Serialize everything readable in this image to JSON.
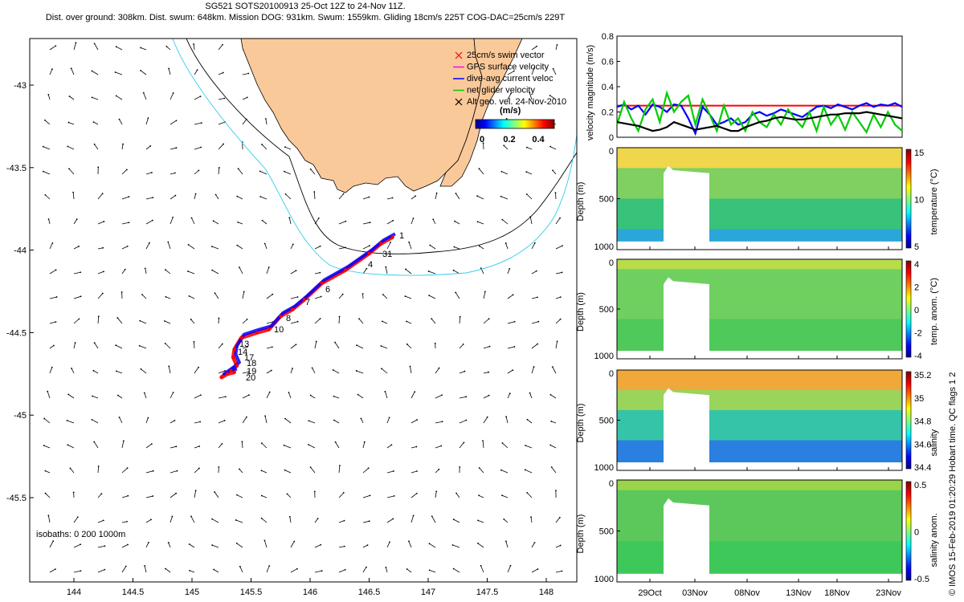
{
  "header": {
    "title_line1": "SG521 SOTS20100913 25-Oct 12Z to 24-Nov 11Z.",
    "title_line2": "Dist. over ground: 308km. Dist. swum: 648km. Mission DOG: 931km. Swum: 1559km. Gliding 18cm/s 225T COG-DAC=25cm/s 229T"
  },
  "credit": "© IMOS 15-Feb-2019 01:20:29 Hobart time. QC flags 1  2",
  "colors": {
    "land": "#fac99a",
    "track": "#ff0000",
    "surface": "#0000ff",
    "dac": "#00cc00",
    "isobath_cyan": "#33ccee"
  },
  "chart_data": [
    {
      "type": "map",
      "name": "track map",
      "xticks": [
        144,
        144.5,
        145,
        145.5,
        146,
        146.5,
        147,
        147.5,
        148
      ],
      "yticks": [
        -43,
        -43.5,
        -44,
        -44.5,
        -45,
        -45.5
      ],
      "xlim": [
        143.7,
        148.25
      ],
      "ylim": [
        -46.0,
        -42.7
      ],
      "legend": [
        "25cm/s swim vector",
        "GPS surface velocity",
        "dive-avg current veloc",
        "net glider velocity",
        "Alt geo. vel. 24-Nov-2010"
      ],
      "colorbar": {
        "label": "(m/s)",
        "ticks": [
          "0",
          "0.2",
          "0.4"
        ]
      },
      "isobaths_note": "isobaths: 0   200   1000m",
      "dive_labels": [
        "1",
        "31",
        "4",
        "6",
        "7",
        "8",
        "10",
        "13",
        "14",
        "17",
        "18",
        "19",
        "20"
      ],
      "track": [
        [
          146.7,
          -43.92
        ],
        [
          146.6,
          -43.96
        ],
        [
          146.5,
          -44.02
        ],
        [
          146.3,
          -44.12
        ],
        [
          146.1,
          -44.2
        ],
        [
          145.95,
          -44.3
        ],
        [
          145.85,
          -44.36
        ],
        [
          145.75,
          -44.4
        ],
        [
          145.65,
          -44.48
        ],
        [
          145.55,
          -44.5
        ],
        [
          145.42,
          -44.53
        ],
        [
          145.36,
          -44.6
        ],
        [
          145.35,
          -44.65
        ],
        [
          145.38,
          -44.7
        ],
        [
          145.33,
          -44.73
        ],
        [
          145.25,
          -44.77
        ],
        [
          145.3,
          -44.75
        ],
        [
          145.36,
          -44.74
        ]
      ]
    },
    {
      "type": "line",
      "name": "velocity",
      "ylabel": "velocity magnitude (m/s)",
      "ylim": [
        0,
        0.8
      ],
      "yticks": [
        "0",
        "0.2",
        "0.4",
        "0.6",
        "0.8"
      ],
      "series": [
        {
          "name": "swim",
          "color": "#ff0000",
          "values": [
            0.25,
            0.25,
            0.25,
            0.25,
            0.25,
            0.25,
            0.25,
            0.25,
            0.25,
            0.25,
            0.25,
            0.25,
            0.25,
            0.25,
            0.25,
            0.25,
            0.25,
            0.25,
            0.25,
            0.25,
            0.25,
            0.25,
            0.25,
            0.25,
            0.25,
            0.25,
            0.25,
            0.25,
            0.25,
            0.25,
            0.25,
            0.25,
            0.25,
            0.25,
            0.25,
            0.25,
            0.25,
            0.25,
            0.25,
            0.25,
            0.25
          ]
        },
        {
          "name": "dive-avg",
          "color": "#0000ff",
          "values": [
            0.24,
            0.26,
            0.22,
            0.25,
            0.18,
            0.26,
            0.24,
            0.2,
            0.26,
            0.25,
            0.15,
            0.03,
            0.24,
            0.18,
            0.1,
            0.12,
            0.15,
            0.1,
            0.12,
            0.18,
            0.2,
            0.17,
            0.19,
            0.22,
            0.2,
            0.18,
            0.16,
            0.2,
            0.24,
            0.25,
            0.23,
            0.26,
            0.24,
            0.22,
            0.25,
            0.27,
            0.24,
            0.26,
            0.25,
            0.27,
            0.24
          ]
        },
        {
          "name": "net",
          "color": "#00cc00",
          "values": [
            0.1,
            0.28,
            0.15,
            0.05,
            0.22,
            0.3,
            0.12,
            0.35,
            0.2,
            0.28,
            0.33,
            0.1,
            0.3,
            0.18,
            0.05,
            0.25,
            0.1,
            0.15,
            0.05,
            0.2,
            0.12,
            0.08,
            0.18,
            0.1,
            0.22,
            0.14,
            0.08,
            0.2,
            0.05,
            0.24,
            0.1,
            0.18,
            0.06,
            0.2,
            0.12,
            0.04,
            0.18,
            0.08,
            0.2,
            0.1,
            0.05
          ]
        },
        {
          "name": "smoothed",
          "color": "#000000",
          "values": [
            0.12,
            0.11,
            0.1,
            0.09,
            0.07,
            0.05,
            0.06,
            0.08,
            0.12,
            0.1,
            0.08,
            0.06,
            0.07,
            0.08,
            0.09,
            0.07,
            0.05,
            0.05,
            0.08,
            0.1,
            0.12,
            0.13,
            0.15,
            0.16,
            0.15,
            0.14,
            0.14,
            0.15,
            0.16,
            0.17,
            0.18,
            0.18,
            0.19,
            0.19,
            0.19,
            0.2,
            0.19,
            0.18,
            0.17,
            0.16,
            0.15
          ]
        }
      ]
    },
    {
      "type": "heatmap",
      "name": "temperature",
      "ylabel": "Depth (m)",
      "clabel": "temperature (°C)",
      "yticks": [
        "0",
        "500",
        "1000"
      ],
      "cticks": [
        "5",
        "10",
        "15"
      ],
      "xticks": [
        "29Oct",
        "03Nov",
        "08Nov",
        "13Nov",
        "18Nov",
        "23Nov"
      ]
    },
    {
      "type": "heatmap",
      "name": "temperature anomaly",
      "ylabel": "Depth (m)",
      "clabel": "temp. anom. (°C)",
      "yticks": [
        "0",
        "500",
        "1000"
      ],
      "cticks": [
        "-4",
        "-2",
        "0",
        "2",
        "4"
      ]
    },
    {
      "type": "heatmap",
      "name": "salinity",
      "ylabel": "Depth (m)",
      "clabel": "salinity",
      "yticks": [
        "0",
        "500",
        "1000"
      ],
      "cticks": [
        "34.4",
        "34.6",
        "34.8",
        "35",
        "35.2"
      ]
    },
    {
      "type": "heatmap",
      "name": "salinity anomaly",
      "ylabel": "Depth (m)",
      "clabel": "salinity anom.",
      "yticks": [
        "0",
        "500",
        "1000"
      ],
      "cticks": [
        "-0.5",
        "0",
        "0.5"
      ],
      "xticks": [
        "29Oct",
        "03Nov",
        "08Nov",
        "13Nov",
        "18Nov",
        "23Nov"
      ]
    }
  ]
}
